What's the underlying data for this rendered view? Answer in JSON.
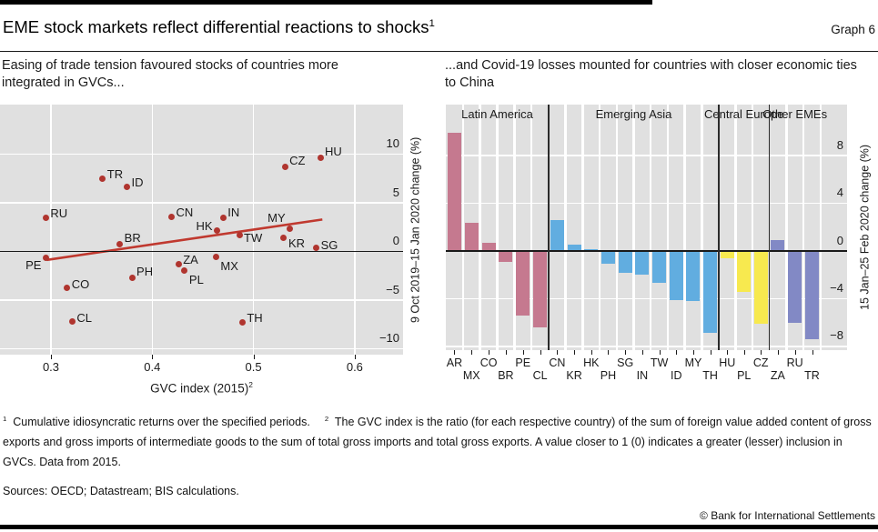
{
  "header": {
    "title": "EME stock markets reflect differential reactions to shocks",
    "footnote_marker": "1",
    "graph_label": "Graph 6"
  },
  "panels": {
    "left": {
      "subtitle": "Easing of trade tension favoured stocks of countries more integrated in GVCs...",
      "xlabel": "GVC index (2015)",
      "xlabel_marker": "2",
      "ylabel": "9 Oct 2019–15 Jan 2020 change (%)"
    },
    "right": {
      "subtitle": "...and Covid-19 losses mounted for countries with closer economic ties to China",
      "ylabel": "15 Jan–25 Feb 2020 change (%)"
    }
  },
  "footnotes": [
    {
      "marker": "1",
      "text": "Cumulative idiosyncratic returns over the specified periods."
    },
    {
      "marker": "2",
      "text": "The GVC index is the ratio (for each respective country) of the sum of foreign value added content of gross exports and gross imports of intermediate goods to the sum of total gross imports and total gross exports. A value closer to 1 (0) indicates a greater (lesser) inclusion in GVCs. Data from 2015."
    }
  ],
  "sources": "Sources: OECD; Datastream; BIS calculations.",
  "copyright": "© Bank for International Settlements",
  "chart_data": [
    {
      "type": "scatter",
      "title": "Easing of trade tension favoured stocks of countries more integrated in GVCs...",
      "xlabel": "GVC index (2015)",
      "ylabel": "9 Oct 2019–15 Jan 2020 change (%)",
      "xticks": [
        0.3,
        0.4,
        0.5,
        0.6
      ],
      "yticks": [
        10,
        5,
        0,
        -5,
        -10
      ],
      "xlim": [
        0.25,
        0.648
      ],
      "ylim": [
        -10.6,
        15.1
      ],
      "grid": true,
      "point_color": "#b0352f",
      "trendline": {
        "x1": 0.296,
        "y1": -0.85,
        "x2": 0.568,
        "y2": 3.3,
        "color": "#c0392f"
      },
      "points": [
        {
          "label": "RU",
          "x": 0.295,
          "y": 3.5,
          "dy": -4.5
        },
        {
          "label": "PE",
          "x": 0.295,
          "y": -0.6,
          "dy": 9,
          "anchor": "left"
        },
        {
          "label": "CO",
          "x": 0.316,
          "y": -3.7,
          "dy": -3.5
        },
        {
          "label": "CL",
          "x": 0.321,
          "y": -7.2,
          "dy": -3.5
        },
        {
          "label": "TR",
          "x": 0.351,
          "y": 7.5,
          "dy": -4.5
        },
        {
          "label": "BR",
          "x": 0.368,
          "y": 0.8,
          "dy": -6.5
        },
        {
          "label": "ID",
          "x": 0.375,
          "y": 6.7,
          "dy": -4
        },
        {
          "label": "PH",
          "x": 0.38,
          "y": -2.7,
          "dy": -6.5
        },
        {
          "label": "CN",
          "x": 0.419,
          "y": 3.6,
          "dy": -4.5
        },
        {
          "label": "ZA",
          "x": 0.426,
          "y": -1.3,
          "dy": -4.5
        },
        {
          "label": "PL",
          "x": 0.432,
          "y": -1.9,
          "dy": 10.5
        },
        {
          "label": "MX",
          "x": 0.463,
          "y": -0.5,
          "dy": 11
        },
        {
          "label": "HK",
          "x": 0.464,
          "y": 2.2,
          "dy": -4,
          "anchor": "left"
        },
        {
          "label": "IN",
          "x": 0.47,
          "y": 3.5,
          "dy": -5.5
        },
        {
          "label": "TW",
          "x": 0.486,
          "y": 1.7,
          "dy": 3.5
        },
        {
          "label": "TH",
          "x": 0.489,
          "y": -7.3,
          "dy": -4.5
        },
        {
          "label": "KR",
          "x": 0.53,
          "y": 1.4,
          "dy": 6
        },
        {
          "label": "CZ",
          "x": 0.531,
          "y": 8.7,
          "dy": -6.5
        },
        {
          "label": "MY",
          "x": 0.536,
          "y": 2.4,
          "dy": -11,
          "anchor": "left"
        },
        {
          "label": "SG",
          "x": 0.562,
          "y": 0.4,
          "dy": -2.5
        },
        {
          "label": "HU",
          "x": 0.566,
          "y": 9.6,
          "dy": -7
        }
      ]
    },
    {
      "type": "bar",
      "title": "...and Covid-19 losses mounted for countries with closer economic ties to China",
      "ylabel": "15 Jan–25 Feb 2020 change (%)",
      "yticks": [
        8,
        4,
        0,
        -4,
        -8
      ],
      "ylim": [
        -8.3,
        12.3
      ],
      "grid": true,
      "groups": [
        {
          "name": "Latin America",
          "color": "#c5798f",
          "categories": [
            "AR",
            "MX",
            "CO",
            "BR",
            "PE",
            "CL"
          ],
          "values": [
            9.9,
            2.4,
            0.7,
            -0.9,
            -5.4,
            -6.4
          ]
        },
        {
          "name": "Emerging Asia",
          "color": "#61ade0",
          "categories": [
            "CN",
            "KR",
            "HK",
            "PH",
            "SG",
            "IN",
            "TW",
            "ID",
            "MY",
            "TH"
          ],
          "values": [
            2.6,
            0.5,
            0.15,
            -1.1,
            -1.8,
            -2.0,
            -2.7,
            -4.1,
            -4.2,
            -6.9
          ]
        },
        {
          "name": "Central Europe",
          "color": "#f7e94f",
          "categories": [
            "HU",
            "PL",
            "CZ"
          ],
          "values": [
            -0.6,
            -3.4,
            -6.1
          ]
        },
        {
          "name": "Other EMEs",
          "color": "#8289c5",
          "categories": [
            "ZA",
            "RU",
            "TR"
          ],
          "values": [
            0.9,
            -6.0,
            -7.4
          ]
        }
      ]
    }
  ]
}
